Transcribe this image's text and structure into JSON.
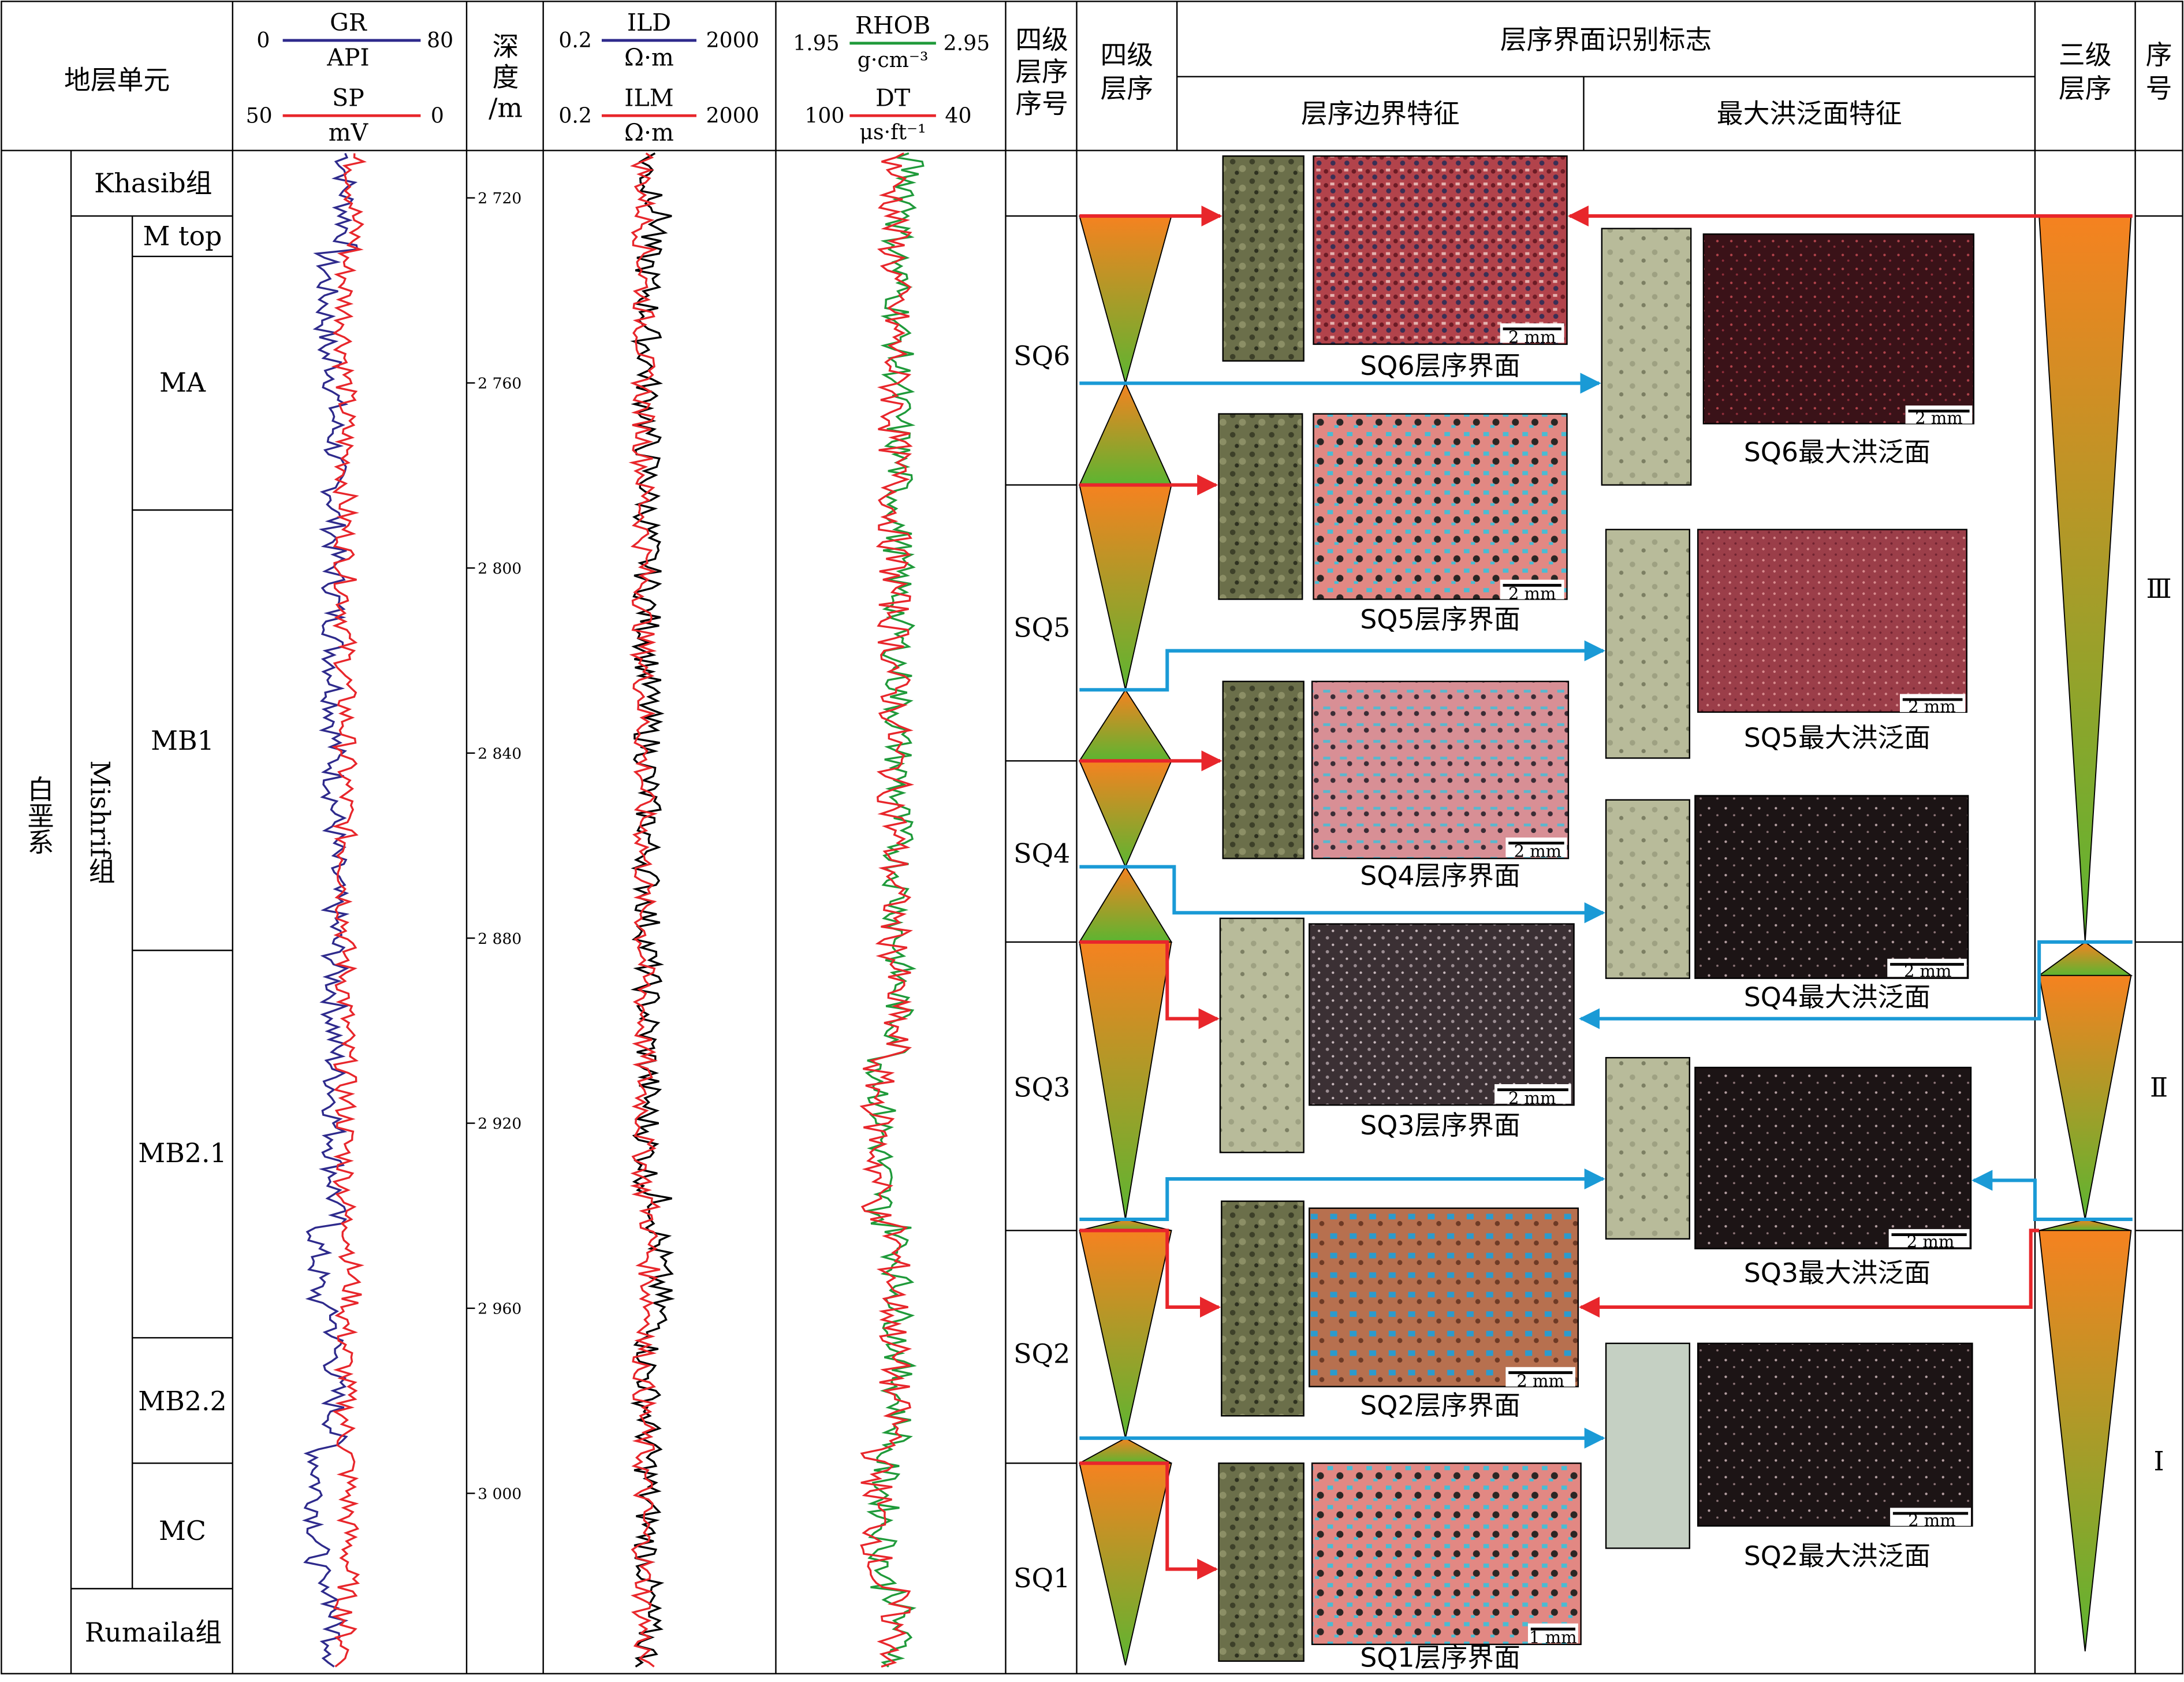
{
  "header": {
    "strat_unit": "地层单元",
    "depth": [
      "深",
      "度",
      "/m"
    ],
    "fourth_seq_no": [
      "四级",
      "层序",
      "序号"
    ],
    "fourth_seq": [
      "四级",
      "层序"
    ],
    "boundary_marks": "层序界面识别标志",
    "boundary_feature": "层序边界特征",
    "mfs_feature": "最大洪泛面特征",
    "third_seq": [
      "三级",
      "层序"
    ],
    "seq_no": [
      "序",
      "号"
    ]
  },
  "log_headers": {
    "gr": {
      "name": "GR",
      "unit": "API",
      "min": "0",
      "max": "80",
      "color": "#2e2a8c"
    },
    "sp": {
      "name": "SP",
      "unit": "mV",
      "min": "50",
      "max": "0",
      "color": "#e8262b"
    },
    "ild": {
      "name": "ILD",
      "unit": "Ω·m",
      "min": "0.2",
      "max": "2000",
      "color": "#2e2a8c"
    },
    "ilm": {
      "name": "ILM",
      "unit": "Ω·m",
      "min": "0.2",
      "max": "2000",
      "color": "#e8262b"
    },
    "rhob": {
      "name": "RHOB",
      "unit": "g·cm⁻³",
      "min": "1.95",
      "max": "2.95",
      "color": "#1f9a3a"
    },
    "dt": {
      "name": "DT",
      "unit": "μs·ft⁻¹",
      "min": "100",
      "max": "40",
      "color": "#e8262b"
    }
  },
  "strat": {
    "system": "白垩系",
    "formation": "Mishrif组",
    "khasib": "Khasib组",
    "rumaila": "Rumaila组",
    "members": [
      "M top",
      "MA",
      "MB1",
      "MB2.1",
      "MB2.2",
      "MC"
    ]
  },
  "depth_ticks": [
    {
      "label": "2 720",
      "value": 2720
    },
    {
      "label": "2 760",
      "value": 2760
    },
    {
      "label": "2 800",
      "value": 2800
    },
    {
      "label": "2 840",
      "value": 2840
    },
    {
      "label": "2 880",
      "value": 2880
    },
    {
      "label": "2 920",
      "value": 2920
    },
    {
      "label": "2 960",
      "value": 2960
    },
    {
      "label": "3 000",
      "value": 3000
    }
  ],
  "fourth_sequences": [
    "SQ6",
    "SQ5",
    "SQ4",
    "SQ3",
    "SQ2",
    "SQ1"
  ],
  "boundary_captions": [
    "SQ6层序界面",
    "SQ5层序界面",
    "SQ4层序界面",
    "SQ3层序界面",
    "SQ2层序界面",
    "SQ1层序界面"
  ],
  "mfs_captions": [
    "SQ6最大洪泛面",
    "SQ5最大洪泛面",
    "SQ4最大洪泛面",
    "SQ3最大洪泛面",
    "SQ2最大洪泛面"
  ],
  "scale_bars": [
    "2 mm",
    "2 mm",
    "2 mm",
    "2 mm",
    "2 mm",
    "1 mm",
    "2 mm",
    "2 mm",
    "2 mm",
    "2 mm",
    "2 mm"
  ],
  "third_sequences": [
    "Ⅲ",
    "Ⅱ",
    "Ⅰ"
  ],
  "colors": {
    "boundary_arrow": "#e8262b",
    "mfs_arrow": "#1a9ad6",
    "triangle_top": "#f58220",
    "triangle_bottom": "#5cb531"
  }
}
